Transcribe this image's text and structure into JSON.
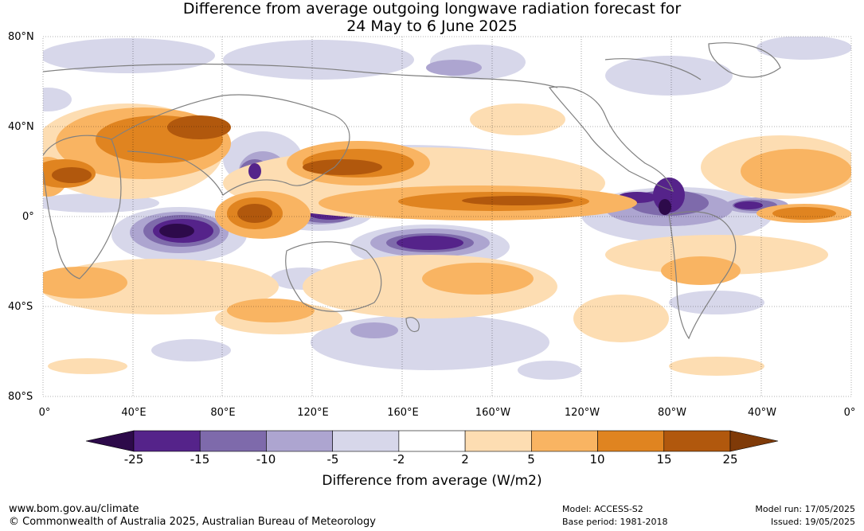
{
  "title_line1": "Difference from average outgoing longwave radiation forecast for",
  "title_line2": "24 May to 6 June 2025",
  "lat_labels": [
    "80°N",
    "40°N",
    "0°",
    "40°S",
    "80°S"
  ],
  "lon_labels": [
    "0°",
    "40°E",
    "80°E",
    "120°E",
    "160°E",
    "160°W",
    "120°W",
    "80°W",
    "40°W",
    "0°"
  ],
  "colorbar": {
    "ticks": [
      "-25",
      "-15",
      "-10",
      "-5",
      "-2",
      "2",
      "5",
      "10",
      "15",
      "25"
    ],
    "colors": [
      "#2d0a4a",
      "#55238a",
      "#7e6aab",
      "#ada5d0",
      "#d7d7ea",
      "#ffffff",
      "#fdddb2",
      "#f9b462",
      "#e08420",
      "#b1580d",
      "#7f3a08"
    ],
    "title": "Difference from average (W/m2)"
  },
  "footer": {
    "website": "www.bom.gov.au/climate",
    "copyright": "© Commonwealth of Australia 2025, Australian Bureau of Meteorology",
    "model": "Model: ACCESS-S2",
    "base_period": "Base period: 1981-2018",
    "model_run": "Model run: 17/05/2025",
    "issued": "Issued: 19/05/2025"
  }
}
